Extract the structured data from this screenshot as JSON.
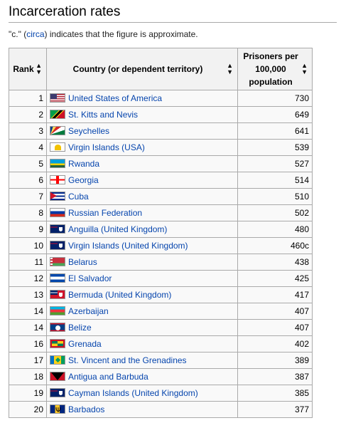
{
  "page": {
    "heading": "Incarceration rates",
    "note_prefix": "\"c.\" (",
    "note_link": "circa",
    "note_suffix": ") indicates that the figure is approximate."
  },
  "table": {
    "headers": {
      "rank": "Rank",
      "country": "Country (or dependent territory)",
      "rate_line1": "Prisoners per",
      "rate_line2": "100,000",
      "rate_line3": "population"
    },
    "sort_icon": "sort-arrows-icon",
    "rows": [
      {
        "rank": "1",
        "flag": "flag-usa",
        "country": "United States of America",
        "rate": "730"
      },
      {
        "rank": "2",
        "flag": "flag-kn",
        "country": "St. Kitts and Nevis",
        "rate": "649"
      },
      {
        "rank": "3",
        "flag": "flag-sc",
        "country": "Seychelles",
        "rate": "641"
      },
      {
        "rank": "4",
        "flag": "flag-vi",
        "country": "Virgin Islands (USA)",
        "rate": "539"
      },
      {
        "rank": "5",
        "flag": "flag-rw",
        "country": "Rwanda",
        "rate": "527"
      },
      {
        "rank": "6",
        "flag": "flag-ge",
        "country": "Georgia",
        "rate": "514"
      },
      {
        "rank": "7",
        "flag": "flag-cu",
        "country": "Cuba",
        "rate": "510"
      },
      {
        "rank": "8",
        "flag": "flag-ru",
        "country": "Russian Federation",
        "rate": "502"
      },
      {
        "rank": "9",
        "flag": "flag-uk",
        "country": "Anguilla (United Kingdom)",
        "rate": "480"
      },
      {
        "rank": "10",
        "flag": "flag-uk",
        "country": "Virgin Islands (United Kingdom)",
        "rate": "460c"
      },
      {
        "rank": "11",
        "flag": "flag-by",
        "country": "Belarus",
        "rate": "438"
      },
      {
        "rank": "12",
        "flag": "flag-sv",
        "country": "El Salvador",
        "rate": "425"
      },
      {
        "rank": "13",
        "flag": "flag-bm",
        "country": "Bermuda (United Kingdom)",
        "rate": "417"
      },
      {
        "rank": "14",
        "flag": "flag-az",
        "country": "Azerbaijan",
        "rate": "407"
      },
      {
        "rank": "14",
        "flag": "flag-bz",
        "country": "Belize",
        "rate": "407"
      },
      {
        "rank": "16",
        "flag": "flag-gd",
        "country": "Grenada",
        "rate": "402"
      },
      {
        "rank": "17",
        "flag": "flag-vc",
        "country": "St. Vincent and the Grenadines",
        "rate": "389"
      },
      {
        "rank": "18",
        "flag": "flag-ag",
        "country": "Antigua and Barbuda",
        "rate": "387"
      },
      {
        "rank": "19",
        "flag": "flag-ky",
        "country": "Cayman Islands (United Kingdom)",
        "rate": "385"
      },
      {
        "rank": "20",
        "flag": "flag-bb",
        "country": "Barbados",
        "rate": "377"
      }
    ]
  },
  "colors": {
    "link": "#0645ad",
    "header_bg": "#f2f2f2",
    "row_bg": "#f9f9f9",
    "border": "#aaaaaa"
  }
}
